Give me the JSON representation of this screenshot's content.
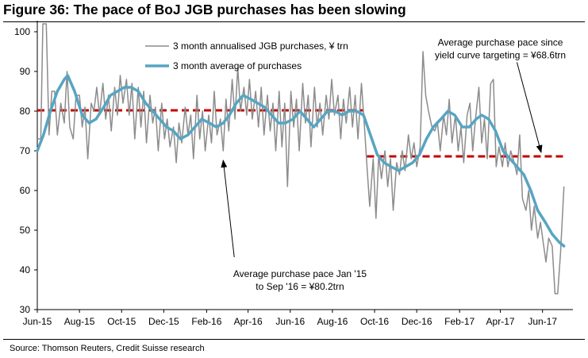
{
  "title": "Figure 36: The pace of BoJ JGB purchases has been slowing",
  "source": "Source: Thomson Reuters, Credit Suisse research",
  "colors": {
    "raw_series": "#8c8c8c",
    "avg_series": "#56a5c2",
    "average_lines": "#c00000"
  },
  "chart_data": {
    "type": "line",
    "ylim": [
      30,
      102
    ],
    "xlim": [
      "2015-06-01",
      "2017-07-15"
    ],
    "yticks": [
      "30",
      "40",
      "50",
      "60",
      "70",
      "80",
      "90",
      "100"
    ],
    "xticks": [
      {
        "label": "Jun-15",
        "date": "2015-06-01"
      },
      {
        "label": "Aug-15",
        "date": "2015-08-01"
      },
      {
        "label": "Oct-15",
        "date": "2015-10-01"
      },
      {
        "label": "Dec-15",
        "date": "2015-12-01"
      },
      {
        "label": "Feb-16",
        "date": "2016-02-01"
      },
      {
        "label": "Apr-16",
        "date": "2016-04-01"
      },
      {
        "label": "Jun-16",
        "date": "2016-06-01"
      },
      {
        "label": "Aug-16",
        "date": "2016-08-01"
      },
      {
        "label": "Oct-16",
        "date": "2016-10-01"
      },
      {
        "label": "Dec-16",
        "date": "2016-12-01"
      },
      {
        "label": "Feb-17",
        "date": "2017-02-01"
      },
      {
        "label": "Apr-17",
        "date": "2017-04-01"
      },
      {
        "label": "Jun-17",
        "date": "2017-06-01"
      }
    ],
    "legend": [
      "3 month annualised JGB purchases, ¥ trn",
      "3 month average of purchases"
    ],
    "series": [
      {
        "name": "3 month annualised JGB purchases, ¥ trn",
        "points": [
          [
            "2015-06-01",
            73
          ],
          [
            "2015-06-06",
            73
          ],
          [
            "2015-06-09",
            102
          ],
          [
            "2015-06-14",
            102
          ],
          [
            "2015-06-18",
            74
          ],
          [
            "2015-06-22",
            85
          ],
          [
            "2015-06-26",
            85
          ],
          [
            "2015-06-30",
            74
          ],
          [
            "2015-07-05",
            82
          ],
          [
            "2015-07-10",
            77
          ],
          [
            "2015-07-14",
            90
          ],
          [
            "2015-07-18",
            76
          ],
          [
            "2015-07-23",
            73
          ],
          [
            "2015-07-27",
            84
          ],
          [
            "2015-08-01",
            84
          ],
          [
            "2015-08-05",
            76
          ],
          [
            "2015-08-09",
            81
          ],
          [
            "2015-08-13",
            68
          ],
          [
            "2015-08-18",
            82
          ],
          [
            "2015-08-22",
            80
          ],
          [
            "2015-08-26",
            86
          ],
          [
            "2015-08-30",
            79
          ],
          [
            "2015-09-04",
            87
          ],
          [
            "2015-09-08",
            78
          ],
          [
            "2015-09-12",
            84
          ],
          [
            "2015-09-16",
            75
          ],
          [
            "2015-09-21",
            86
          ],
          [
            "2015-09-25",
            79
          ],
          [
            "2015-09-29",
            89
          ],
          [
            "2015-10-03",
            82
          ],
          [
            "2015-10-08",
            88
          ],
          [
            "2015-10-12",
            79
          ],
          [
            "2015-10-16",
            87
          ],
          [
            "2015-10-20",
            73
          ],
          [
            "2015-10-25",
            86
          ],
          [
            "2015-10-29",
            76
          ],
          [
            "2015-11-02",
            85
          ],
          [
            "2015-11-06",
            72
          ],
          [
            "2015-11-11",
            84
          ],
          [
            "2015-11-15",
            77
          ],
          [
            "2015-11-19",
            81
          ],
          [
            "2015-11-23",
            70
          ],
          [
            "2015-11-28",
            82
          ],
          [
            "2015-12-02",
            73
          ],
          [
            "2015-12-06",
            78
          ],
          [
            "2015-12-10",
            71
          ],
          [
            "2015-12-15",
            76
          ],
          [
            "2015-12-19",
            67
          ],
          [
            "2015-12-23",
            77
          ],
          [
            "2015-12-27",
            72
          ],
          [
            "2016-01-01",
            81
          ],
          [
            "2016-01-05",
            74
          ],
          [
            "2016-01-09",
            79
          ],
          [
            "2016-01-13",
            68
          ],
          [
            "2016-01-18",
            84
          ],
          [
            "2016-01-22",
            73
          ],
          [
            "2016-01-26",
            80
          ],
          [
            "2016-01-30",
            70
          ],
          [
            "2016-02-04",
            79
          ],
          [
            "2016-02-08",
            72
          ],
          [
            "2016-02-12",
            85
          ],
          [
            "2016-02-16",
            74
          ],
          [
            "2016-02-21",
            78
          ],
          [
            "2016-02-25",
            70
          ],
          [
            "2016-02-29",
            83
          ],
          [
            "2016-03-04",
            75
          ],
          [
            "2016-03-09",
            88
          ],
          [
            "2016-03-13",
            78
          ],
          [
            "2016-03-17",
            91
          ],
          [
            "2016-03-21",
            80
          ],
          [
            "2016-03-26",
            86
          ],
          [
            "2016-03-30",
            79
          ],
          [
            "2016-04-03",
            88
          ],
          [
            "2016-04-07",
            78
          ],
          [
            "2016-04-12",
            85
          ],
          [
            "2016-04-16",
            76
          ],
          [
            "2016-04-20",
            86
          ],
          [
            "2016-04-24",
            74
          ],
          [
            "2016-04-29",
            84
          ],
          [
            "2016-05-03",
            75
          ],
          [
            "2016-05-07",
            82
          ],
          [
            "2016-05-11",
            70
          ],
          [
            "2016-05-16",
            85
          ],
          [
            "2016-05-20",
            71
          ],
          [
            "2016-05-24",
            82
          ],
          [
            "2016-05-28",
            61
          ],
          [
            "2016-06-02",
            85
          ],
          [
            "2016-06-06",
            76
          ],
          [
            "2016-06-10",
            83
          ],
          [
            "2016-06-14",
            70
          ],
          [
            "2016-06-19",
            87
          ],
          [
            "2016-06-23",
            77
          ],
          [
            "2016-06-27",
            84
          ],
          [
            "2016-07-01",
            71
          ],
          [
            "2016-07-06",
            86
          ],
          [
            "2016-07-10",
            76
          ],
          [
            "2016-07-14",
            82
          ],
          [
            "2016-07-18",
            74
          ],
          [
            "2016-07-23",
            84
          ],
          [
            "2016-07-27",
            78
          ],
          [
            "2016-07-31",
            88
          ],
          [
            "2016-08-04",
            79
          ],
          [
            "2016-08-09",
            84
          ],
          [
            "2016-08-13",
            73
          ],
          [
            "2016-08-17",
            83
          ],
          [
            "2016-08-21",
            77
          ],
          [
            "2016-08-26",
            86
          ],
          [
            "2016-08-30",
            76
          ],
          [
            "2016-09-03",
            84
          ],
          [
            "2016-09-07",
            73
          ],
          [
            "2016-09-12",
            87
          ],
          [
            "2016-09-16",
            77
          ],
          [
            "2016-09-20",
            66
          ],
          [
            "2016-09-24",
            56
          ],
          [
            "2016-09-29",
            68
          ],
          [
            "2016-10-03",
            53
          ],
          [
            "2016-10-07",
            69
          ],
          [
            "2016-10-11",
            63
          ],
          [
            "2016-10-16",
            70
          ],
          [
            "2016-10-20",
            61
          ],
          [
            "2016-10-24",
            68
          ],
          [
            "2016-10-28",
            55
          ],
          [
            "2016-11-02",
            67
          ],
          [
            "2016-11-06",
            64
          ],
          [
            "2016-11-10",
            70
          ],
          [
            "2016-11-14",
            65
          ],
          [
            "2016-11-19",
            74
          ],
          [
            "2016-11-23",
            68
          ],
          [
            "2016-11-27",
            72
          ],
          [
            "2016-12-01",
            66
          ],
          [
            "2016-12-06",
            71
          ],
          [
            "2016-12-10",
            95
          ],
          [
            "2016-12-14",
            84
          ],
          [
            "2016-12-18",
            80
          ],
          [
            "2016-12-23",
            76
          ],
          [
            "2016-12-27",
            75
          ],
          [
            "2016-12-31",
            77
          ],
          [
            "2017-01-04",
            70
          ],
          [
            "2017-01-09",
            79
          ],
          [
            "2017-01-13",
            74
          ],
          [
            "2017-01-17",
            83
          ],
          [
            "2017-01-21",
            72
          ],
          [
            "2017-01-26",
            79
          ],
          [
            "2017-01-30",
            70
          ],
          [
            "2017-02-03",
            76
          ],
          [
            "2017-02-07",
            67
          ],
          [
            "2017-02-12",
            79
          ],
          [
            "2017-02-16",
            82
          ],
          [
            "2017-02-20",
            70
          ],
          [
            "2017-02-24",
            78
          ],
          [
            "2017-03-01",
            86
          ],
          [
            "2017-03-05",
            72
          ],
          [
            "2017-03-09",
            78
          ],
          [
            "2017-03-13",
            68
          ],
          [
            "2017-03-18",
            87
          ],
          [
            "2017-03-22",
            88
          ],
          [
            "2017-03-26",
            66
          ],
          [
            "2017-03-30",
            71
          ],
          [
            "2017-04-04",
            66
          ],
          [
            "2017-04-08",
            72
          ],
          [
            "2017-04-12",
            66
          ],
          [
            "2017-04-16",
            70
          ],
          [
            "2017-04-21",
            67
          ],
          [
            "2017-04-25",
            64
          ],
          [
            "2017-04-29",
            74
          ],
          [
            "2017-05-03",
            58
          ],
          [
            "2017-05-08",
            55
          ],
          [
            "2017-05-12",
            60
          ],
          [
            "2017-05-16",
            50
          ],
          [
            "2017-05-20",
            56
          ],
          [
            "2017-05-25",
            48
          ],
          [
            "2017-05-29",
            52
          ],
          [
            "2017-06-02",
            47
          ],
          [
            "2017-06-06",
            42
          ],
          [
            "2017-06-10",
            48
          ],
          [
            "2017-06-15",
            46
          ],
          [
            "2017-06-19",
            34
          ],
          [
            "2017-06-23",
            34
          ],
          [
            "2017-06-27",
            44
          ],
          [
            "2017-07-02",
            61
          ]
        ]
      },
      {
        "name": "3 month average of purchases",
        "points": [
          [
            "2015-06-01",
            70
          ],
          [
            "2015-06-10",
            74
          ],
          [
            "2015-06-20",
            80
          ],
          [
            "2015-06-30",
            85
          ],
          [
            "2015-07-10",
            88
          ],
          [
            "2015-07-15",
            89
          ],
          [
            "2015-07-25",
            85
          ],
          [
            "2015-08-05",
            79
          ],
          [
            "2015-08-15",
            77
          ],
          [
            "2015-08-25",
            78
          ],
          [
            "2015-09-05",
            81
          ],
          [
            "2015-09-15",
            84
          ],
          [
            "2015-09-25",
            85
          ],
          [
            "2015-10-05",
            86
          ],
          [
            "2015-10-15",
            86
          ],
          [
            "2015-10-25",
            85
          ],
          [
            "2015-11-05",
            82
          ],
          [
            "2015-11-15",
            80
          ],
          [
            "2015-11-25",
            78
          ],
          [
            "2015-12-05",
            76
          ],
          [
            "2015-12-15",
            75
          ],
          [
            "2015-12-25",
            73
          ],
          [
            "2016-01-05",
            74
          ],
          [
            "2016-01-15",
            76
          ],
          [
            "2016-01-25",
            78
          ],
          [
            "2016-02-05",
            77
          ],
          [
            "2016-02-15",
            76
          ],
          [
            "2016-02-25",
            77
          ],
          [
            "2016-03-05",
            79
          ],
          [
            "2016-03-15",
            82
          ],
          [
            "2016-03-25",
            84
          ],
          [
            "2016-04-05",
            83
          ],
          [
            "2016-04-15",
            82
          ],
          [
            "2016-04-25",
            81
          ],
          [
            "2016-05-05",
            79
          ],
          [
            "2016-05-15",
            77
          ],
          [
            "2016-05-25",
            77
          ],
          [
            "2016-06-05",
            78
          ],
          [
            "2016-06-15",
            80
          ],
          [
            "2016-06-25",
            78
          ],
          [
            "2016-07-05",
            76
          ],
          [
            "2016-07-15",
            78
          ],
          [
            "2016-07-25",
            80
          ],
          [
            "2016-08-05",
            80
          ],
          [
            "2016-08-15",
            79
          ],
          [
            "2016-08-25",
            80
          ],
          [
            "2016-09-05",
            80
          ],
          [
            "2016-09-15",
            79
          ],
          [
            "2016-09-25",
            74
          ],
          [
            "2016-10-05",
            69
          ],
          [
            "2016-10-15",
            67
          ],
          [
            "2016-10-25",
            66
          ],
          [
            "2016-11-05",
            65
          ],
          [
            "2016-11-15",
            66
          ],
          [
            "2016-11-25",
            67
          ],
          [
            "2016-12-05",
            69
          ],
          [
            "2016-12-15",
            73
          ],
          [
            "2016-12-25",
            76
          ],
          [
            "2017-01-05",
            78
          ],
          [
            "2017-01-15",
            80
          ],
          [
            "2017-01-25",
            79
          ],
          [
            "2017-02-05",
            76
          ],
          [
            "2017-02-15",
            76
          ],
          [
            "2017-02-25",
            78
          ],
          [
            "2017-03-05",
            79
          ],
          [
            "2017-03-15",
            78
          ],
          [
            "2017-03-25",
            75
          ],
          [
            "2017-04-05",
            70
          ],
          [
            "2017-04-15",
            68
          ],
          [
            "2017-04-25",
            66
          ],
          [
            "2017-05-05",
            64
          ],
          [
            "2017-05-15",
            60
          ],
          [
            "2017-05-25",
            55
          ],
          [
            "2017-06-05",
            52
          ],
          [
            "2017-06-15",
            49
          ],
          [
            "2017-06-25",
            47
          ],
          [
            "2017-07-02",
            46
          ]
        ]
      }
    ],
    "reference_lines": [
      {
        "from": "2015-06-01",
        "to": "2016-09-15",
        "value": 80.2
      },
      {
        "from": "2016-09-20",
        "to": "2017-07-02",
        "value": 68.6
      }
    ],
    "annotations": [
      {
        "lines": [
          "Average purchase pace Jan '15",
          "to Sep '16 = ¥80.2trn"
        ],
        "text_at": [
          "2016-06-15",
          38.2
        ],
        "arrow_from": [
          "2016-03-12",
          43.2
        ],
        "arrow_to": [
          "2016-02-25",
          67.6
        ]
      },
      {
        "lines": [
          "Average purchase pace  since",
          "yield curve targeting = ¥68.6trn"
        ],
        "text_at": [
          "2017-04-01",
          96.5
        ],
        "arrow_from": [
          "2017-04-25",
          92.3
        ],
        "arrow_to": [
          "2017-05-30",
          69.6
        ]
      }
    ]
  }
}
